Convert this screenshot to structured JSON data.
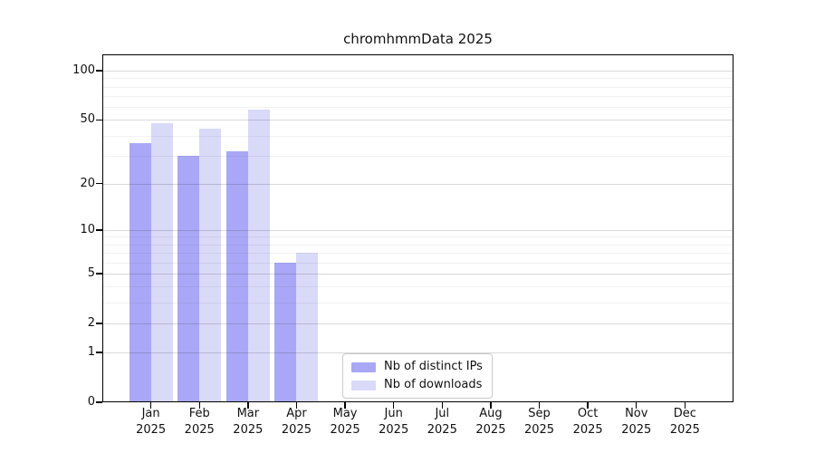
{
  "title": "chromhmmData 2025",
  "chart_data": {
    "type": "bar",
    "title": "chromhmmData 2025",
    "scale": "log1p-base10",
    "grid": "horizontal",
    "legend_position": "lower center",
    "categories": [
      "Jan 2025",
      "Feb 2025",
      "Mar 2025",
      "Apr 2025",
      "May 2025",
      "Jun 2025",
      "Jul 2025",
      "Aug 2025",
      "Sep 2025",
      "Oct 2025",
      "Nov 2025",
      "Dec 2025"
    ],
    "series": [
      {
        "name": "Nb of distinct IPs",
        "color": "#a8a8f6",
        "values": [
          36,
          30,
          32,
          6,
          null,
          null,
          null,
          null,
          null,
          null,
          null,
          null
        ]
      },
      {
        "name": "Nb of downloads",
        "color": "#d9d9f8",
        "values": [
          48,
          44,
          58,
          7,
          null,
          null,
          null,
          null,
          null,
          null,
          null,
          null
        ]
      }
    ],
    "y_ticks": [
      100,
      50,
      20,
      10,
      5,
      2,
      1,
      0
    ],
    "ylim": [
      0,
      126
    ],
    "xlabel": "",
    "ylabel": "",
    "gridlines": {
      "major_values": [
        1,
        2,
        5,
        10,
        20,
        50,
        100
      ],
      "minor_values": [
        3,
        4,
        6,
        7,
        8,
        9,
        30,
        40,
        60,
        70,
        80,
        90
      ],
      "major_color": "rgba(0,0,0,0.15)",
      "minor_color": "rgba(0,0,0,0.055)"
    }
  },
  "colors": {
    "background": "#ffffff",
    "axis": "#000000",
    "distinct_ips_bar": "#a8a8f6",
    "downloads_bar": "#d9d9f8"
  }
}
